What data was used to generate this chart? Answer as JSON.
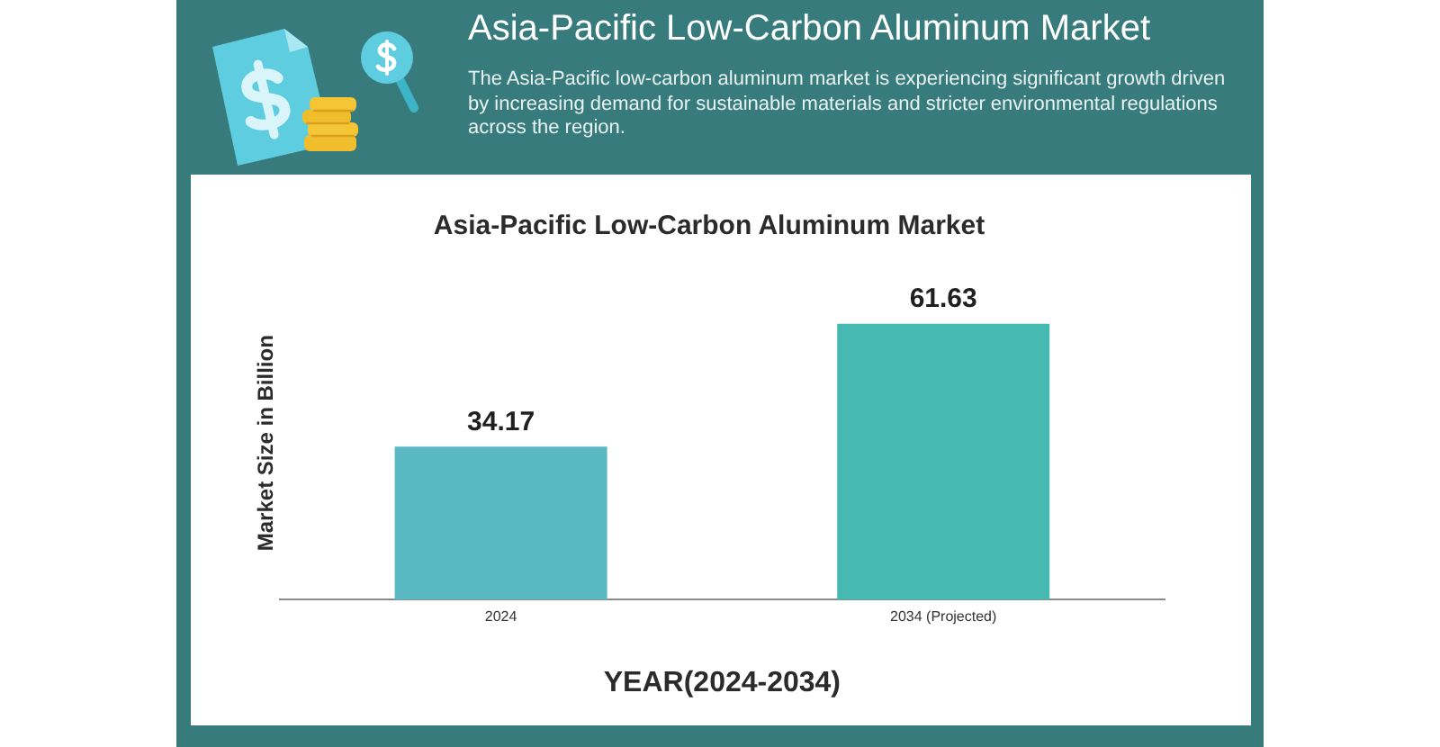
{
  "chart_data": {
    "type": "bar",
    "title": "Asia-Pacific Low-Carbon Aluminum Market",
    "subtitle": "The Asia-Pacific low-carbon aluminum market is experiencing significant growth driven by increasing demand for sustainable materials and stricter environmental regulations across the region.",
    "xlabel": "YEAR(2024-2034)",
    "ylabel": "Market Size in Billion",
    "categories": [
      "2024",
      "2034 (Projected)"
    ],
    "values": [
      34.17,
      61.63
    ],
    "colors": [
      "#5ab8c3",
      "#47b9b3"
    ],
    "data_labels": true,
    "tick_labels": "x"
  }
}
